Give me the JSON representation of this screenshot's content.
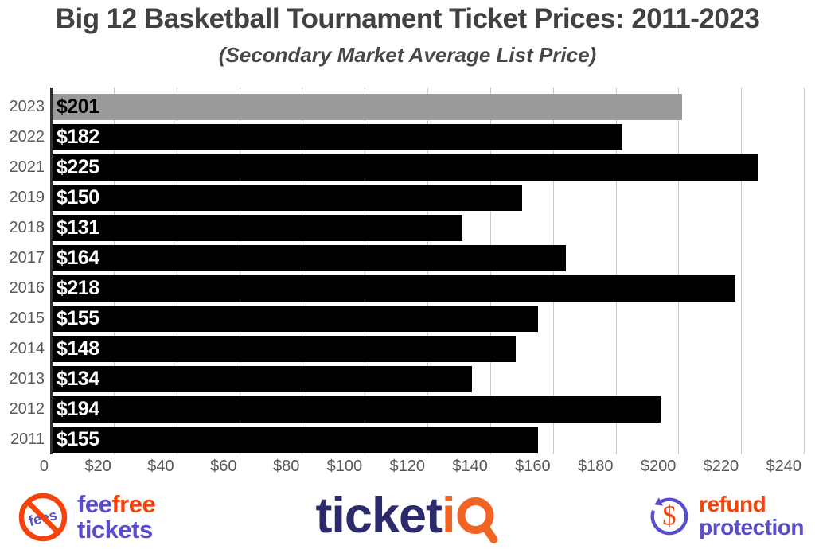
{
  "header": {
    "title": "Big 12 Basketball Tournament Ticket Prices: 2011-2023",
    "subtitle": "(Secondary Market Average List Price)"
  },
  "chart_data": {
    "type": "bar",
    "orientation": "horizontal",
    "title": "Big 12 Basketball Tournament Ticket Prices: 2011-2023",
    "subtitle": "(Secondary Market Average List Price)",
    "categories": [
      "2023",
      "2022",
      "2021",
      "2019",
      "2018",
      "2017",
      "2016",
      "2015",
      "2014",
      "2013",
      "2012",
      "2011"
    ],
    "values": [
      201,
      182,
      225,
      150,
      131,
      164,
      218,
      155,
      148,
      134,
      194,
      155
    ],
    "value_labels": [
      "$201",
      "$182",
      "$225",
      "$150",
      "$131",
      "$164",
      "$218",
      "$155",
      "$148",
      "$134",
      "$194",
      "$155"
    ],
    "xlim": [
      0,
      240
    ],
    "x_ticks": [
      {
        "value": 0,
        "label": "0"
      },
      {
        "value": 20,
        "label": "$20"
      },
      {
        "value": 40,
        "label": "$40"
      },
      {
        "value": 60,
        "label": "$60"
      },
      {
        "value": 80,
        "label": "$80"
      },
      {
        "value": 100,
        "label": "$100"
      },
      {
        "value": 120,
        "label": "$120"
      },
      {
        "value": 140,
        "label": "$140"
      },
      {
        "value": 160,
        "label": "$160"
      },
      {
        "value": 180,
        "label": "$180"
      },
      {
        "value": 200,
        "label": "$200"
      },
      {
        "value": 220,
        "label": "$220"
      },
      {
        "value": 240,
        "label": "$240"
      }
    ],
    "grid": true,
    "legend": false,
    "bar_color": "#000000",
    "value_label_color": "#ffffff",
    "highlight_index": 0,
    "highlight_bar_color": "#9a9a9a",
    "highlight_label_color": "#000000",
    "axis_text_color": "#58585b",
    "gridline_color": "#c9c9c9"
  },
  "footer": {
    "feefree": {
      "word1": "fee",
      "word2": "free",
      "line2": "tickets",
      "icon_label": "fees"
    },
    "ticketiq": {
      "word1": "ticket",
      "word2": "i"
    },
    "refund": {
      "line1": "refund",
      "line2": "protection",
      "icon_symbol": "$"
    },
    "colors": {
      "purple": "#584ecb",
      "red_orange": "#f4430c",
      "navy": "#2b2a6a",
      "tiq_orange": "#f16524"
    }
  }
}
